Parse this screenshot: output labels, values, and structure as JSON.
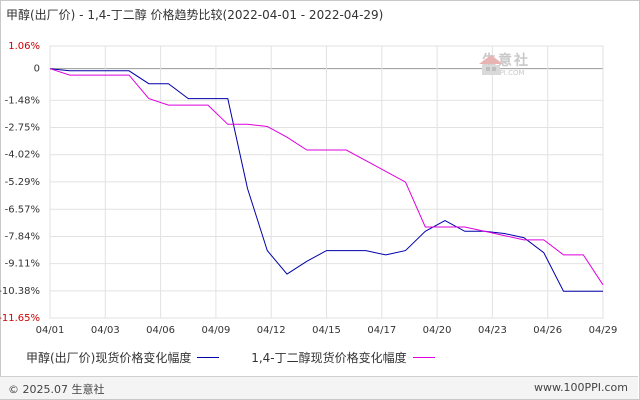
{
  "chart_data": {
    "type": "line",
    "title": "甲醇(出厂价) - 1,4-丁二醇 价格趋势比较(2022-04-01 - 2022-04-29)",
    "x_tick_labels": [
      "04/01",
      "04/03",
      "04/06",
      "04/09",
      "04/12",
      "04/15",
      "04/17",
      "04/20",
      "04/23",
      "04/26",
      "04/29"
    ],
    "y_tick_labels": [
      "1.06%",
      "0",
      "-1.48%",
      "-2.75%",
      "-4.02%",
      "-5.29%",
      "-6.57%",
      "-7.84%",
      "-9.11%",
      "-10.38%",
      "-11.65%"
    ],
    "ylim": [
      -11.65,
      1.06
    ],
    "ylabel": "",
    "xlabel": "",
    "grid": true,
    "legend_position": "bottom",
    "series": [
      {
        "name": "甲醇(出厂价)现货价格变化幅度",
        "color": "#0000aa",
        "x": [
          "04/01",
          "04/02",
          "04/03",
          "04/04",
          "04/05",
          "04/06",
          "04/07",
          "04/08",
          "04/09",
          "04/10",
          "04/11",
          "04/12",
          "04/13",
          "04/14",
          "04/15",
          "04/16",
          "04/17",
          "04/18",
          "04/19",
          "04/20",
          "04/21",
          "04/22",
          "04/23",
          "04/24",
          "04/25",
          "04/26",
          "04/27",
          "04/28",
          "04/29"
        ],
        "values": [
          0.0,
          -0.1,
          -0.1,
          -0.1,
          -0.1,
          -0.7,
          -0.7,
          -1.4,
          -1.4,
          -1.4,
          -5.6,
          -8.5,
          -9.6,
          -9.0,
          -8.5,
          -8.5,
          -8.5,
          -8.7,
          -8.5,
          -7.6,
          -7.1,
          -7.6,
          -7.6,
          -7.7,
          -7.9,
          -8.6,
          -10.4,
          -10.4,
          -10.4
        ]
      },
      {
        "name": "1,4-丁二醇现货价格变化幅度",
        "color": "#dd00dd",
        "x": [
          "04/01",
          "04/02",
          "04/03",
          "04/04",
          "04/05",
          "04/06",
          "04/07",
          "04/08",
          "04/09",
          "04/10",
          "04/11",
          "04/12",
          "04/13",
          "04/14",
          "04/15",
          "04/16",
          "04/17",
          "04/18",
          "04/19",
          "04/20",
          "04/21",
          "04/22",
          "04/23",
          "04/24",
          "04/25",
          "04/26",
          "04/27",
          "04/28",
          "04/29"
        ],
        "values": [
          0.0,
          -0.3,
          -0.3,
          -0.3,
          -0.3,
          -1.4,
          -1.7,
          -1.7,
          -1.7,
          -2.6,
          -2.6,
          -2.7,
          -3.2,
          -3.8,
          -3.8,
          -3.8,
          -4.3,
          -4.8,
          -5.3,
          -7.4,
          -7.4,
          -7.4,
          -7.6,
          -7.8,
          -8.0,
          -8.0,
          -8.7,
          -8.7,
          -10.1
        ]
      }
    ]
  },
  "watermark": {
    "name": "生意社",
    "url": "100PPI.COM"
  },
  "footer": {
    "copyright": "© 2025.07 生意社",
    "site": "www.100PPI.com"
  }
}
